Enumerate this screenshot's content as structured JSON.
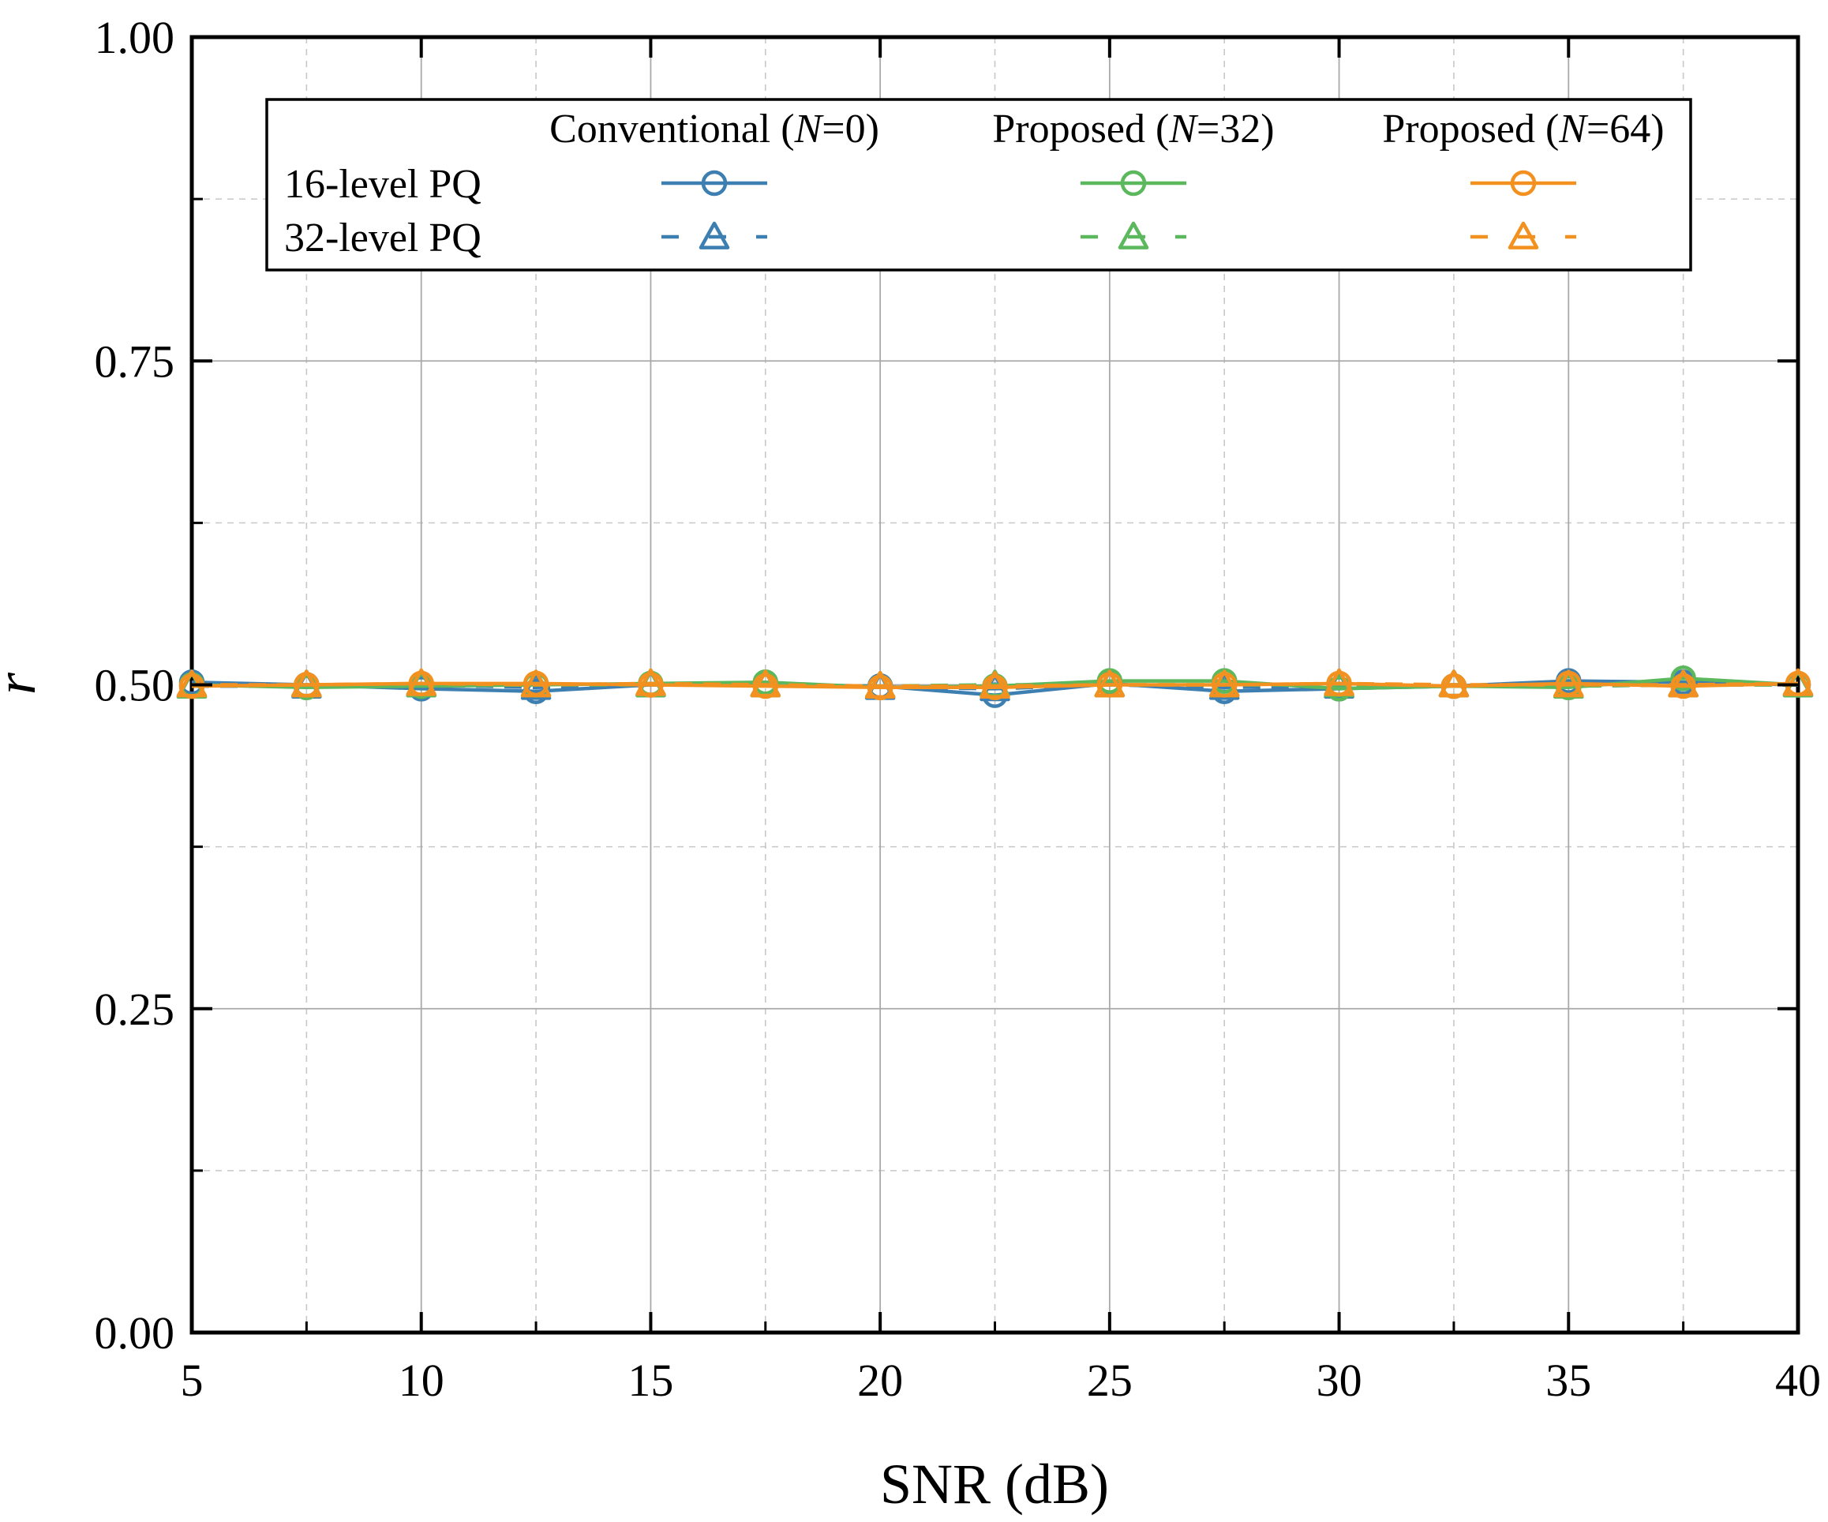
{
  "chart_data": {
    "type": "line",
    "xlabel": "SNR (dB)",
    "ylabel": "r",
    "xlim": [
      5,
      40
    ],
    "ylim": [
      0.0,
      1.0
    ],
    "x_ticks": [
      "5",
      "10",
      "15",
      "20",
      "25",
      "30",
      "35",
      "40"
    ],
    "y_ticks": [
      "0.00",
      "0.25",
      "0.50",
      "0.75",
      "1.00"
    ],
    "grid": true,
    "x": [
      5,
      7.5,
      10,
      12.5,
      15,
      17.5,
      20,
      22.5,
      25,
      27.5,
      30,
      32.5,
      35,
      37.5,
      40
    ],
    "legend": {
      "placement": "top",
      "columns": [
        {
          "prefix": "Conventional (",
          "var": "N",
          "suffix": "=0)"
        },
        {
          "prefix": "Proposed (",
          "var": "N",
          "suffix": "=32)"
        },
        {
          "prefix": "Proposed (",
          "var": "N",
          "suffix": "=64)"
        }
      ],
      "rows": [
        "16-level PQ",
        "32-level PQ"
      ]
    },
    "colors": {
      "conventional": "#3d7fb0",
      "proposed32": "#5cb85c",
      "proposed64": "#f29120"
    },
    "series": [
      {
        "name": "Conventional (N=0), 16-level PQ",
        "color": "#3d7fb0",
        "marker": "circle",
        "dash": "solid",
        "values": [
          0.502,
          0.5,
          0.497,
          0.495,
          0.5,
          0.5,
          0.499,
          0.492,
          0.501,
          0.495,
          0.497,
          0.499,
          0.503,
          0.502,
          0.5
        ]
      },
      {
        "name": "Conventional (N=0), 32-level PQ",
        "color": "#3d7fb0",
        "marker": "triangle",
        "dash": "dashed",
        "values": [
          0.499,
          0.499,
          0.5,
          0.498,
          0.5,
          0.5,
          0.498,
          0.497,
          0.5,
          0.498,
          0.499,
          0.5,
          0.499,
          0.5,
          0.5
        ]
      },
      {
        "name": "Proposed (N=32), 16-level PQ",
        "color": "#5cb85c",
        "marker": "circle",
        "dash": "solid",
        "values": [
          0.5,
          0.498,
          0.499,
          0.5,
          0.501,
          0.502,
          0.498,
          0.499,
          0.503,
          0.503,
          0.497,
          0.499,
          0.498,
          0.505,
          0.5
        ]
      },
      {
        "name": "Proposed (N=32), 32-level PQ",
        "color": "#5cb85c",
        "marker": "triangle",
        "dash": "dashed",
        "values": [
          0.499,
          0.5,
          0.5,
          0.5,
          0.5,
          0.5,
          0.499,
          0.5,
          0.5,
          0.5,
          0.5,
          0.5,
          0.499,
          0.5,
          0.5
        ]
      },
      {
        "name": "Proposed (N=64), 16-level PQ",
        "color": "#f29120",
        "marker": "circle",
        "dash": "solid",
        "values": [
          0.499,
          0.5,
          0.501,
          0.501,
          0.5,
          0.499,
          0.498,
          0.498,
          0.5,
          0.5,
          0.501,
          0.499,
          0.501,
          0.499,
          0.501
        ]
      },
      {
        "name": "Proposed (N=64), 32-level PQ",
        "color": "#f29120",
        "marker": "triangle",
        "dash": "dashed",
        "values": [
          0.5,
          0.5,
          0.501,
          0.5,
          0.501,
          0.5,
          0.499,
          0.499,
          0.5,
          0.5,
          0.501,
          0.5,
          0.5,
          0.5,
          0.501
        ]
      }
    ]
  }
}
